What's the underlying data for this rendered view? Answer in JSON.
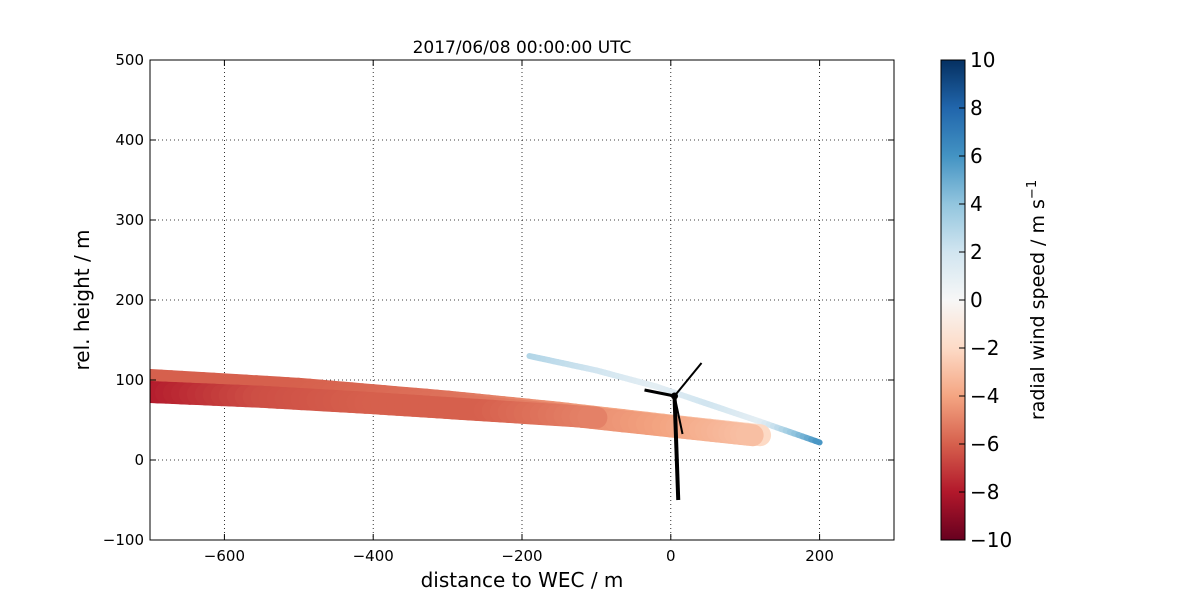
{
  "chart_data": {
    "type": "scatter",
    "title": "2017/06/08 00:00:00 UTC",
    "xlabel": "distance to WEC / m",
    "ylabel": "rel. height / m",
    "xlim": [
      -700,
      300
    ],
    "ylim": [
      -100,
      500
    ],
    "xticks": [
      -600,
      -400,
      -200,
      0,
      200
    ],
    "xtick_labels": [
      "−600",
      "−400",
      "−200",
      "0",
      "200"
    ],
    "yticks": [
      -100,
      0,
      100,
      200,
      300,
      400,
      500
    ],
    "ytick_labels": [
      "−100",
      "0",
      "100",
      "200",
      "300",
      "400",
      "500"
    ],
    "grid": true,
    "colorbar": {
      "label": "radial wind speed / m s",
      "label_superscript": "−1",
      "range": [
        -10,
        10
      ],
      "ticks": [
        -10,
        -8,
        -6,
        -4,
        -2,
        0,
        2,
        4,
        6,
        8,
        10
      ],
      "tick_labels": [
        "−10",
        "−8",
        "−6",
        "−4",
        "−2",
        "0",
        "2",
        "4",
        "6",
        "8",
        "10"
      ],
      "colormap": [
        "#67001f",
        "#b2182b",
        "#d6604d",
        "#f4a582",
        "#fddbc7",
        "#f7f7f7",
        "#d1e5f0",
        "#92c5de",
        "#4393c3",
        "#2166ac",
        "#053061"
      ]
    },
    "beams": [
      {
        "x": [
          -190,
          -100,
          -20,
          50,
          120,
          200
        ],
        "y": [
          130,
          112,
          92,
          70,
          48,
          22
        ],
        "values": [
          3,
          2,
          1,
          2,
          1,
          6
        ]
      },
      {
        "x": [
          -700,
          -500,
          -300,
          -150,
          0,
          120
        ],
        "y": [
          100,
          89,
          73,
          59,
          43,
          31
        ],
        "values": [
          -6,
          -6,
          -5.5,
          -4.5,
          -3.5,
          -2
        ]
      },
      {
        "x": [
          -700,
          -500,
          -300,
          -150,
          0,
          110
        ],
        "y": [
          95,
          85,
          70,
          57,
          42,
          31
        ],
        "values": [
          -6,
          -6,
          -5.5,
          -5,
          -4,
          -3
        ]
      },
      {
        "x": [
          -700,
          -550,
          -400,
          -250,
          -100
        ],
        "y": [
          85,
          79,
          71,
          62,
          53
        ],
        "values": [
          -8,
          -6.5,
          -6,
          -6,
          -5
        ]
      }
    ],
    "wec": {
      "hub_height": 80,
      "tower_base": -50
    }
  }
}
